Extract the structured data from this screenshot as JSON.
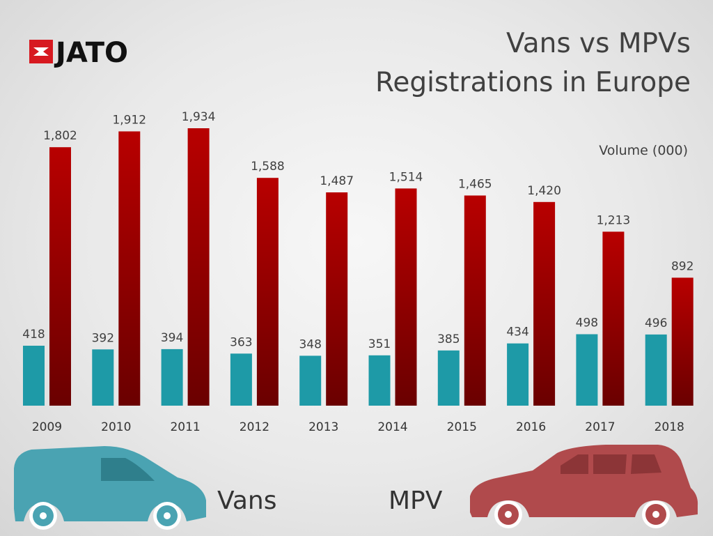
{
  "brand": {
    "name": "JATO",
    "color": "#d71920"
  },
  "chart_data": {
    "type": "bar",
    "title_lines": [
      "Vans vs MPVs",
      "Registrations in Europe"
    ],
    "unit_label": "Volume (000)",
    "categories": [
      "2009",
      "2010",
      "2011",
      "2012",
      "2013",
      "2014",
      "2015",
      "2016",
      "2017",
      "2018"
    ],
    "series": [
      {
        "name": "Vans",
        "color": "#1e9aa7",
        "values": [
          418,
          392,
          394,
          363,
          348,
          351,
          385,
          434,
          498,
          496
        ],
        "labels": [
          "418",
          "392",
          "394",
          "363",
          "348",
          "351",
          "385",
          "434",
          "498",
          "496"
        ]
      },
      {
        "name": "MPV",
        "color": "#b80000",
        "values": [
          1802,
          1912,
          1934,
          1588,
          1487,
          1514,
          1465,
          1420,
          1213,
          892
        ],
        "labels": [
          "1,802",
          "1,912",
          "1,934",
          "1,588",
          "1,487",
          "1,514",
          "1,465",
          "1,420",
          "1,213",
          "892"
        ]
      }
    ],
    "ylim": [
      0,
      1934
    ],
    "grid": false,
    "legend": {
      "placement": "bottom",
      "items": [
        {
          "label": "Vans",
          "icon": "van-icon",
          "color": "#4aa3b2"
        },
        {
          "label": "MPV",
          "icon": "mpv-icon",
          "color": "#b04a4c"
        }
      ]
    }
  }
}
